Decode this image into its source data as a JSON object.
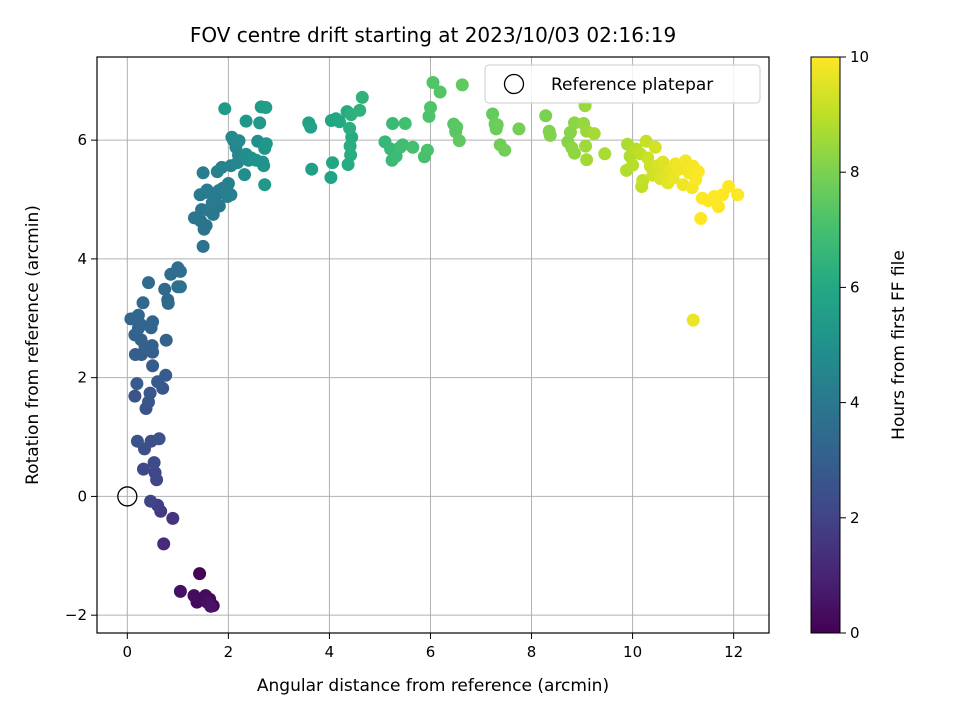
{
  "chart_data": {
    "type": "scatter",
    "title": "FOV centre drift starting at 2023/10/03 02:16:19",
    "xlabel": "Angular distance from reference (arcmin)",
    "ylabel": "Rotation from reference (arcmin)",
    "xlim": [
      -0.6,
      12.7
    ],
    "ylim": [
      -2.3,
      7.4
    ],
    "xticks": [
      0,
      2,
      4,
      6,
      8,
      10,
      12
    ],
    "yticks": [
      -2,
      0,
      2,
      4,
      6
    ],
    "grid": true,
    "colormap": "viridis",
    "colorbar": {
      "label": "Hours from first FF file",
      "min": 0,
      "max": 10,
      "ticks": [
        0,
        2,
        4,
        6,
        8,
        10
      ]
    },
    "legend": {
      "position": "top-right",
      "entries": [
        "Reference platepar"
      ]
    },
    "reference_point": {
      "x": 0,
      "y": 0
    },
    "points": [
      [
        1.43,
        -1.3,
        0.1
      ],
      [
        1.7,
        -1.84,
        0.15
      ],
      [
        1.63,
        -1.73,
        0.2
      ],
      [
        1.38,
        -1.78,
        0.25
      ],
      [
        1.55,
        -1.67,
        0.3
      ],
      [
        1.32,
        -1.67,
        0.35
      ],
      [
        1.58,
        -1.78,
        0.4
      ],
      [
        1.05,
        -1.6,
        0.45
      ],
      [
        1.65,
        -1.85,
        0.5
      ],
      [
        0.72,
        -0.8,
        1.2
      ],
      [
        0.9,
        -0.37,
        1.5
      ],
      [
        0.66,
        -0.25,
        1.7
      ],
      [
        0.6,
        -0.15,
        1.8
      ],
      [
        0.46,
        -0.08,
        2.0
      ],
      [
        0.58,
        0.28,
        2.1
      ],
      [
        0.55,
        0.4,
        2.15
      ],
      [
        0.32,
        0.46,
        2.2
      ],
      [
        0.53,
        0.57,
        2.3
      ],
      [
        0.34,
        0.8,
        2.4
      ],
      [
        0.47,
        0.93,
        2.4
      ],
      [
        0.63,
        0.97,
        2.5
      ],
      [
        0.2,
        0.93,
        2.5
      ],
      [
        0.37,
        1.48,
        2.6
      ],
      [
        0.15,
        1.69,
        2.6
      ],
      [
        0.42,
        1.59,
        2.65
      ],
      [
        0.45,
        1.74,
        2.7
      ],
      [
        0.7,
        1.82,
        2.75
      ],
      [
        0.6,
        1.93,
        2.8
      ],
      [
        0.76,
        2.04,
        2.85
      ],
      [
        0.19,
        1.9,
        2.85
      ],
      [
        0.5,
        2.2,
        2.9
      ],
      [
        0.28,
        2.39,
        2.9
      ],
      [
        0.16,
        2.39,
        2.95
      ],
      [
        0.35,
        2.53,
        3.0
      ],
      [
        0.5,
        2.43,
        3.0
      ],
      [
        0.49,
        2.54,
        3.05
      ],
      [
        0.27,
        2.64,
        3.1
      ],
      [
        0.77,
        2.63,
        3.1
      ],
      [
        0.15,
        2.72,
        3.15
      ],
      [
        0.22,
        2.83,
        3.2
      ],
      [
        0.27,
        2.89,
        3.2
      ],
      [
        0.5,
        2.94,
        3.25
      ],
      [
        0.47,
        2.84,
        3.25
      ],
      [
        0.07,
        2.99,
        3.3
      ],
      [
        0.22,
        3.05,
        3.3
      ],
      [
        0.31,
        3.26,
        3.35
      ],
      [
        0.81,
        3.25,
        3.4
      ],
      [
        0.8,
        3.31,
        3.4
      ],
      [
        0.74,
        3.49,
        3.45
      ],
      [
        0.42,
        3.6,
        3.5
      ],
      [
        0.86,
        3.74,
        3.55
      ],
      [
        1.0,
        3.85,
        3.6
      ],
      [
        1.05,
        3.79,
        3.6
      ],
      [
        1.0,
        3.53,
        3.65
      ],
      [
        1.05,
        3.53,
        3.7
      ],
      [
        1.5,
        4.21,
        3.75
      ],
      [
        1.52,
        4.5,
        3.8
      ],
      [
        1.56,
        4.56,
        3.85
      ],
      [
        1.45,
        4.64,
        3.85
      ],
      [
        1.33,
        4.69,
        3.9
      ],
      [
        1.47,
        4.83,
        3.9
      ],
      [
        1.6,
        4.82,
        3.95
      ],
      [
        1.7,
        4.75,
        4.0
      ],
      [
        1.82,
        4.89,
        4.0
      ],
      [
        1.68,
        4.94,
        4.05
      ],
      [
        1.74,
        5.04,
        4.05
      ],
      [
        1.44,
        5.08,
        4.1
      ],
      [
        1.55,
        5.12,
        4.1
      ],
      [
        1.58,
        5.16,
        4.15
      ],
      [
        1.81,
        5.15,
        4.15
      ],
      [
        1.89,
        5.19,
        4.2
      ],
      [
        1.97,
        5.21,
        4.2
      ],
      [
        1.5,
        5.45,
        4.25
      ],
      [
        2.05,
        5.08,
        4.3
      ],
      [
        1.98,
        5.05,
        4.3
      ],
      [
        2.0,
        5.27,
        4.35
      ],
      [
        1.78,
        5.47,
        4.35
      ],
      [
        1.87,
        5.54,
        4.4
      ],
      [
        2.05,
        5.57,
        4.45
      ],
      [
        2.18,
        5.62,
        4.5
      ],
      [
        2.2,
        5.75,
        4.55
      ],
      [
        2.15,
        5.88,
        4.6
      ],
      [
        2.1,
        6.0,
        4.6
      ],
      [
        2.07,
        6.05,
        4.65
      ],
      [
        2.21,
        5.99,
        4.7
      ],
      [
        2.33,
        5.73,
        4.75
      ],
      [
        2.4,
        5.66,
        4.8
      ],
      [
        2.32,
        5.42,
        4.85
      ],
      [
        2.35,
        5.76,
        4.9
      ],
      [
        2.45,
        5.7,
        4.95
      ],
      [
        2.55,
        5.66,
        5.0
      ],
      [
        2.58,
        5.98,
        5.0
      ],
      [
        2.68,
        5.63,
        5.05
      ],
      [
        2.7,
        5.57,
        5.1
      ],
      [
        2.72,
        5.86,
        5.15
      ],
      [
        2.75,
        5.94,
        5.2
      ],
      [
        2.35,
        6.32,
        5.25
      ],
      [
        2.62,
        6.29,
        5.3
      ],
      [
        2.72,
        5.25,
        5.35
      ],
      [
        1.93,
        6.53,
        5.4
      ],
      [
        2.65,
        6.56,
        5.45
      ],
      [
        2.74,
        6.55,
        5.5
      ],
      [
        3.65,
        5.51,
        5.6
      ],
      [
        3.59,
        6.29,
        5.7
      ],
      [
        3.63,
        6.22,
        5.75
      ],
      [
        4.03,
        5.37,
        5.8
      ],
      [
        4.06,
        5.62,
        5.85
      ],
      [
        4.04,
        6.33,
        5.9
      ],
      [
        4.13,
        6.36,
        5.95
      ],
      [
        4.2,
        6.31,
        6.0
      ],
      [
        4.35,
        6.48,
        6.05
      ],
      [
        4.37,
        5.59,
        6.1
      ],
      [
        4.44,
        6.05,
        6.15
      ],
      [
        4.42,
        5.75,
        6.2
      ],
      [
        4.41,
        5.9,
        6.25
      ],
      [
        4.4,
        6.2,
        6.3
      ],
      [
        4.43,
        6.43,
        6.35
      ],
      [
        4.6,
        6.5,
        6.4
      ],
      [
        4.65,
        6.72,
        6.45
      ],
      [
        5.1,
        5.97,
        6.6
      ],
      [
        5.21,
        5.85,
        6.65
      ],
      [
        5.24,
        5.66,
        6.7
      ],
      [
        5.25,
        6.28,
        6.75
      ],
      [
        5.32,
        5.73,
        6.8
      ],
      [
        5.4,
        5.88,
        6.85
      ],
      [
        5.45,
        5.92,
        6.9
      ],
      [
        5.5,
        6.28,
        6.95
      ],
      [
        5.65,
        5.88,
        7.0
      ],
      [
        5.88,
        5.72,
        7.05
      ],
      [
        5.94,
        5.83,
        7.1
      ],
      [
        5.97,
        6.4,
        7.15
      ],
      [
        6.0,
        6.55,
        7.2
      ],
      [
        6.05,
        6.97,
        7.25
      ],
      [
        6.19,
        6.81,
        7.3
      ],
      [
        6.46,
        6.27,
        7.35
      ],
      [
        6.5,
        6.14,
        7.4
      ],
      [
        6.52,
        6.22,
        7.45
      ],
      [
        6.57,
        5.99,
        7.5
      ],
      [
        6.63,
        6.93,
        7.55
      ],
      [
        7.23,
        6.44,
        7.6
      ],
      [
        7.28,
        6.27,
        7.65
      ],
      [
        7.3,
        6.19,
        7.7
      ],
      [
        7.32,
        6.26,
        7.75
      ],
      [
        7.38,
        5.92,
        7.8
      ],
      [
        7.47,
        5.83,
        7.85
      ],
      [
        7.75,
        6.19,
        7.9
      ],
      [
        8.28,
        6.41,
        8.0
      ],
      [
        8.35,
        6.15,
        8.05
      ],
      [
        8.37,
        6.08,
        8.1
      ],
      [
        8.72,
        5.97,
        8.15
      ],
      [
        8.77,
        6.13,
        8.2
      ],
      [
        8.85,
        6.29,
        8.25
      ],
      [
        8.8,
        5.87,
        8.3
      ],
      [
        8.85,
        5.78,
        8.35
      ],
      [
        9.03,
        6.28,
        8.4
      ],
      [
        9.06,
        6.58,
        8.45
      ],
      [
        9.09,
        6.15,
        8.5
      ],
      [
        9.07,
        5.9,
        8.55
      ],
      [
        9.09,
        5.67,
        8.6
      ],
      [
        9.24,
        6.11,
        8.65
      ],
      [
        9.45,
        5.77,
        8.7
      ],
      [
        9.9,
        5.93,
        8.75
      ],
      [
        9.95,
        5.73,
        8.8
      ],
      [
        9.88,
        5.49,
        8.85
      ],
      [
        10.0,
        5.58,
        8.9
      ],
      [
        10.07,
        5.85,
        8.95
      ],
      [
        10.15,
        5.77,
        9.0
      ],
      [
        10.18,
        5.22,
        9.05
      ],
      [
        10.2,
        5.32,
        9.1
      ],
      [
        10.27,
        5.98,
        9.15
      ],
      [
        10.3,
        5.7,
        9.2
      ],
      [
        10.35,
        5.56,
        9.25
      ],
      [
        10.4,
        5.41,
        9.3
      ],
      [
        10.45,
        5.88,
        9.35
      ],
      [
        10.5,
        5.57,
        9.4
      ],
      [
        10.55,
        5.35,
        9.45
      ],
      [
        10.6,
        5.63,
        9.5
      ],
      [
        10.65,
        5.42,
        9.55
      ],
      [
        10.7,
        5.28,
        9.6
      ],
      [
        10.75,
        5.48,
        9.65
      ],
      [
        10.8,
        5.36,
        9.7
      ],
      [
        10.85,
        5.6,
        9.75
      ],
      [
        10.92,
        5.51,
        9.8
      ],
      [
        11.0,
        5.25,
        9.8
      ],
      [
        11.05,
        5.65,
        9.85
      ],
      [
        11.12,
        5.45,
        9.85
      ],
      [
        11.18,
        5.2,
        9.9
      ],
      [
        11.2,
        5.56,
        9.9
      ],
      [
        11.25,
        5.33,
        9.95
      ],
      [
        11.3,
        5.47,
        9.95
      ],
      [
        11.35,
        4.68,
        10.0
      ],
      [
        11.38,
        5.02,
        10.0
      ],
      [
        11.5,
        4.98,
        10.0
      ],
      [
        11.62,
        5.05,
        10.0
      ],
      [
        11.7,
        4.88,
        10.0
      ],
      [
        11.78,
        5.08,
        10.0
      ],
      [
        11.9,
        5.22,
        10.0
      ],
      [
        12.08,
        5.08,
        10.0
      ],
      [
        11.2,
        2.97,
        9.7
      ]
    ]
  }
}
